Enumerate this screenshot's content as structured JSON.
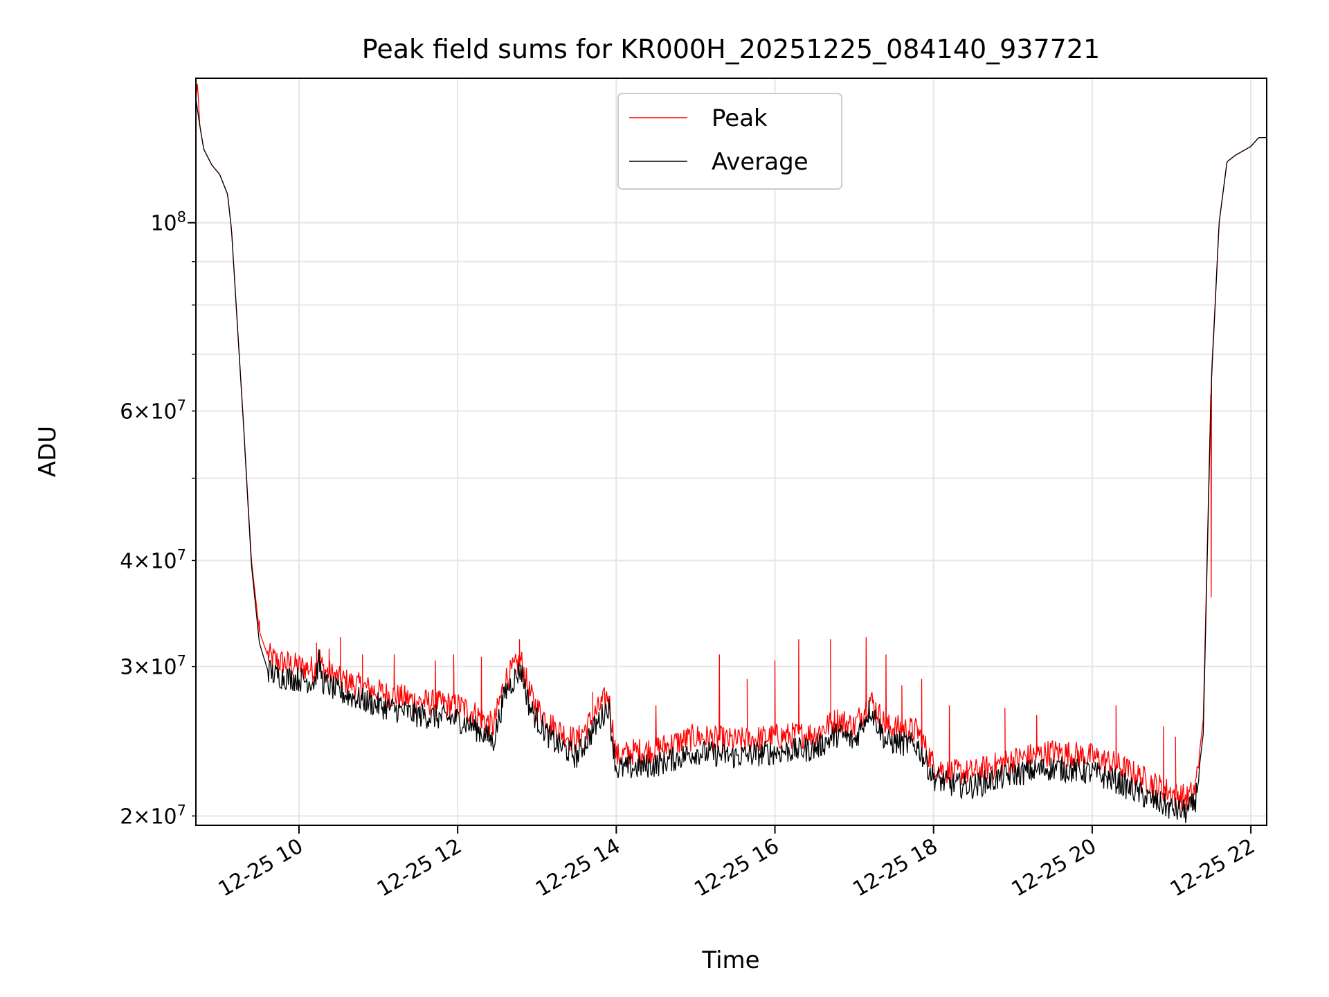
{
  "chart_data": {
    "type": "line",
    "title": "Peak field sums for KR000H_20251225_084140_937721",
    "xlabel": "Time",
    "ylabel": "ADU",
    "yscale": "log",
    "xlim": [
      8.7,
      22.2
    ],
    "ylim": [
      19500000,
      148000000
    ],
    "grid": true,
    "legend_position": "top-center",
    "x_ticks": [
      {
        "value": 10,
        "label": "12-25 10"
      },
      {
        "value": 12,
        "label": "12-25 12"
      },
      {
        "value": 14,
        "label": "12-25 14"
      },
      {
        "value": 16,
        "label": "12-25 16"
      },
      {
        "value": 18,
        "label": "12-25 18"
      },
      {
        "value": 20,
        "label": "12-25 20"
      },
      {
        "value": 22,
        "label": "12-25 22"
      }
    ],
    "y_major_ticks": [
      {
        "value": 100000000,
        "base": "10",
        "exp": "8",
        "coef": ""
      }
    ],
    "y_minor_ticks": [
      {
        "value": 20000000,
        "coef": "2",
        "exp": "7"
      },
      {
        "value": 30000000,
        "coef": "3",
        "exp": "7"
      },
      {
        "value": 40000000,
        "coef": "4",
        "exp": "7"
      },
      {
        "value": 60000000,
        "coef": "6",
        "exp": "7"
      }
    ],
    "y_unlabeled_minor": [
      50000000,
      70000000,
      80000000,
      90000000
    ],
    "series": [
      {
        "name": "Peak",
        "color": "#ff0000",
        "x": [
          8.7,
          8.72,
          8.75,
          8.8,
          8.9,
          9.0,
          9.1,
          9.15,
          9.2,
          9.3,
          9.4,
          9.5,
          9.6,
          9.7,
          10.0,
          10.2,
          10.25,
          10.3,
          10.5,
          11.0,
          11.5,
          12.0,
          12.2,
          12.45,
          12.6,
          12.8,
          12.9,
          13.0,
          13.2,
          13.5,
          13.9,
          14.0,
          14.2,
          14.5,
          15.0,
          15.5,
          16.0,
          16.5,
          16.8,
          17.0,
          17.2,
          17.4,
          17.8,
          18.0,
          18.2,
          18.5,
          19.0,
          19.5,
          20.0,
          20.3,
          20.7,
          21.0,
          21.2,
          21.3,
          21.4,
          21.5,
          21.6,
          21.7,
          21.8,
          22.0,
          22.1,
          22.2
        ],
        "y": [
          140000000,
          146000000,
          130000000,
          122000000,
          117000000,
          114000000,
          108000000,
          98000000,
          82000000,
          58000000,
          40000000,
          33000000,
          31000000,
          30500000,
          30000000,
          29800000,
          31000000,
          29800000,
          29000000,
          28000000,
          27300000,
          27000000,
          26500000,
          25500000,
          29000000,
          30500000,
          28000000,
          26800000,
          25500000,
          24500000,
          27800000,
          23500000,
          23800000,
          24000000,
          24800000,
          24500000,
          24800000,
          25000000,
          26000000,
          25500000,
          27500000,
          25500000,
          25200000,
          23000000,
          22500000,
          22500000,
          23300000,
          23800000,
          23500000,
          23000000,
          22000000,
          21300000,
          21000000,
          21500000,
          26000000,
          65000000,
          100000000,
          118000000,
          120000000,
          123000000,
          126000000,
          126000000
        ],
        "spikes": [
          [
            9.5,
            34000000
          ],
          [
            10.22,
            32000000
          ],
          [
            10.38,
            31500000
          ],
          [
            10.52,
            32500000
          ],
          [
            10.8,
            31000000
          ],
          [
            11.2,
            31000000
          ],
          [
            11.72,
            30500000
          ],
          [
            11.95,
            31000000
          ],
          [
            12.3,
            30800000
          ],
          [
            12.78,
            32300000
          ],
          [
            13.7,
            28000000
          ],
          [
            14.5,
            27000000
          ],
          [
            15.3,
            31000000
          ],
          [
            15.65,
            29000000
          ],
          [
            16.0,
            30500000
          ],
          [
            16.3,
            32300000
          ],
          [
            16.7,
            32300000
          ],
          [
            17.15,
            32500000
          ],
          [
            17.4,
            31000000
          ],
          [
            17.6,
            28500000
          ],
          [
            17.85,
            29000000
          ],
          [
            18.2,
            27000000
          ],
          [
            18.9,
            26800000
          ],
          [
            19.3,
            26300000
          ],
          [
            20.3,
            27000000
          ],
          [
            20.9,
            25500000
          ],
          [
            21.05,
            24800000
          ],
          [
            21.5,
            36200000
          ]
        ]
      },
      {
        "name": "Average",
        "color": "#000000",
        "x": [
          8.7,
          8.75,
          8.8,
          8.9,
          9.0,
          9.1,
          9.15,
          9.2,
          9.3,
          9.4,
          9.5,
          9.6,
          9.7,
          10.0,
          10.2,
          10.25,
          10.3,
          10.5,
          11.0,
          11.5,
          12.0,
          12.2,
          12.45,
          12.6,
          12.8,
          12.9,
          13.0,
          13.2,
          13.5,
          13.9,
          14.0,
          14.2,
          14.5,
          15.0,
          15.5,
          16.0,
          16.5,
          16.8,
          17.0,
          17.2,
          17.4,
          17.8,
          18.0,
          18.2,
          18.5,
          19.0,
          19.5,
          20.0,
          20.3,
          20.7,
          21.0,
          21.2,
          21.3,
          21.4,
          21.5,
          21.6,
          21.7,
          21.8,
          22.0,
          22.1,
          22.2
        ],
        "y": [
          140000000,
          130000000,
          122000000,
          117000000,
          114000000,
          108000000,
          98000000,
          82000000,
          58000000,
          39500000,
          32000000,
          29800000,
          29300000,
          29000000,
          28800000,
          30500000,
          28800000,
          28000000,
          27000000,
          26300000,
          26000000,
          25500000,
          24500000,
          28000000,
          29800000,
          27000000,
          26000000,
          24500000,
          23500000,
          27000000,
          22700000,
          22800000,
          23000000,
          23800000,
          23500000,
          23800000,
          24000000,
          25000000,
          24500000,
          26800000,
          24500000,
          24200000,
          22200000,
          21800000,
          21700000,
          22400000,
          22800000,
          22500000,
          22000000,
          21000000,
          20400000,
          20200000,
          20800000,
          25000000,
          64000000,
          100000000,
          118000000,
          120000000,
          123000000,
          126000000,
          126000000
        ]
      }
    ]
  }
}
